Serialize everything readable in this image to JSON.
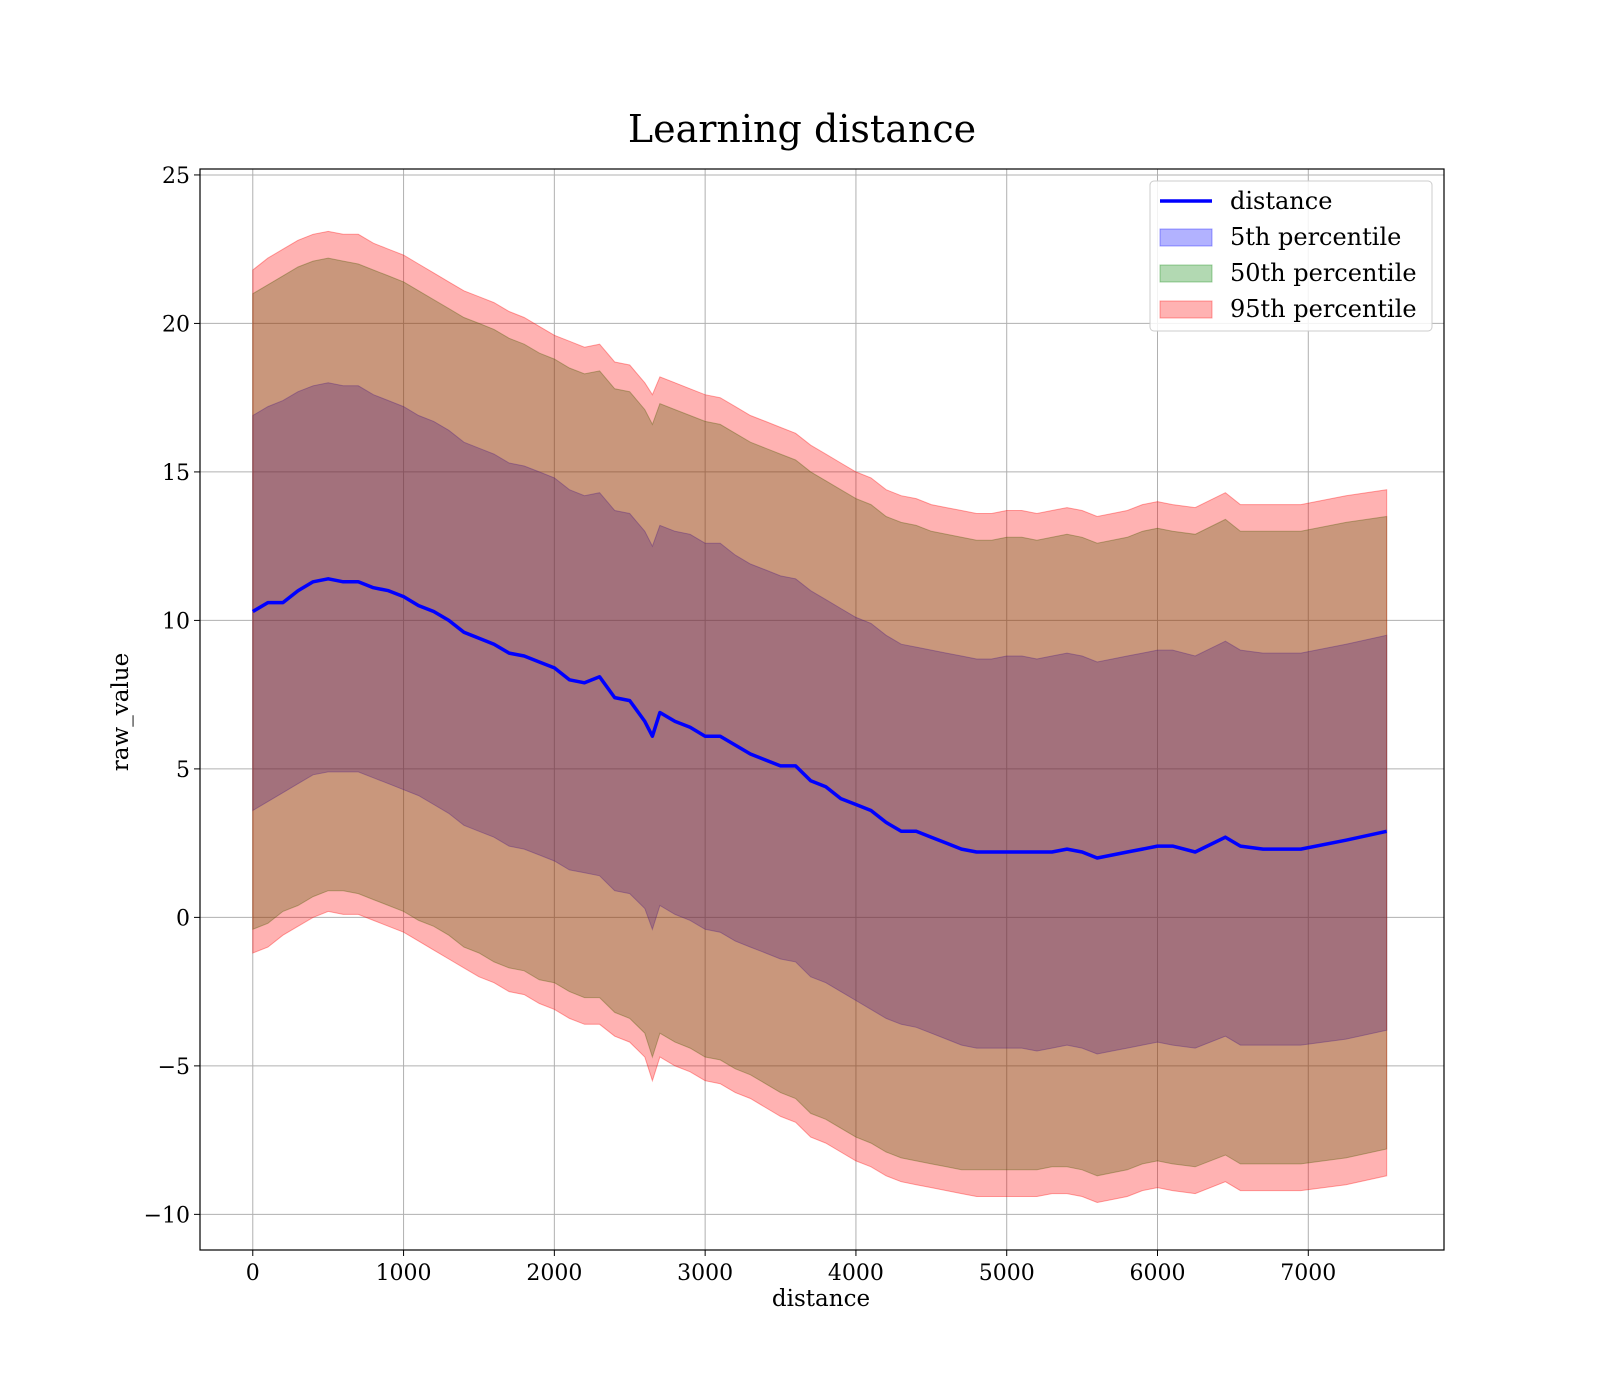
{
  "chart_data": {
    "type": "area",
    "title": "Learning distance",
    "xlabel": "distance",
    "ylabel": "raw_value",
    "xlim": [
      -350,
      7900
    ],
    "ylim": [
      -11.2,
      25.2
    ],
    "xticks": [
      0,
      1000,
      2000,
      3000,
      4000,
      5000,
      6000,
      7000
    ],
    "yticks": [
      -10,
      -5,
      0,
      5,
      10,
      15,
      20,
      25
    ],
    "xtick_labels": [
      "0",
      "1000",
      "2000",
      "3000",
      "4000",
      "5000",
      "6000",
      "7000"
    ],
    "ytick_labels": [
      "−10",
      "−5",
      "0",
      "5",
      "10",
      "15",
      "20",
      "25"
    ],
    "grid": true,
    "legend_position": "top-right",
    "x": [
      0,
      100,
      200,
      300,
      400,
      500,
      600,
      700,
      800,
      900,
      1000,
      1100,
      1200,
      1300,
      1400,
      1500,
      1600,
      1700,
      1800,
      1900,
      2000,
      2100,
      2200,
      2300,
      2400,
      2500,
      2600,
      2650,
      2700,
      2800,
      2900,
      3000,
      3100,
      3200,
      3300,
      3400,
      3500,
      3600,
      3700,
      3800,
      3900,
      4000,
      4100,
      4200,
      4300,
      4400,
      4500,
      4600,
      4700,
      4800,
      4900,
      5000,
      5100,
      5200,
      5300,
      5400,
      5500,
      5600,
      5700,
      5800,
      5900,
      6000,
      6100,
      6250,
      6450,
      6550,
      6700,
      6950,
      7250,
      7520
    ],
    "series": [
      {
        "name": "distance",
        "kind": "line",
        "color": "#0000ff",
        "values": [
          10.3,
          10.6,
          10.6,
          11.0,
          11.3,
          11.4,
          11.3,
          11.3,
          11.1,
          11.0,
          10.8,
          10.5,
          10.3,
          10.0,
          9.6,
          9.4,
          9.2,
          8.9,
          8.8,
          8.6,
          8.4,
          8.0,
          7.9,
          8.1,
          7.4,
          7.3,
          6.6,
          6.1,
          6.9,
          6.6,
          6.4,
          6.1,
          6.1,
          5.8,
          5.5,
          5.3,
          5.1,
          5.1,
          4.6,
          4.4,
          4.0,
          3.8,
          3.6,
          3.2,
          2.9,
          2.9,
          2.7,
          2.5,
          2.3,
          2.2,
          2.2,
          2.2,
          2.2,
          2.2,
          2.2,
          2.3,
          2.2,
          2.0,
          2.1,
          2.2,
          2.3,
          2.4,
          2.4,
          2.2,
          2.7,
          2.4,
          2.3,
          2.3,
          2.6,
          2.9
        ]
      },
      {
        "name": "5th percentile",
        "kind": "band",
        "color": "#0000ff",
        "lower": [
          3.6,
          3.9,
          4.2,
          4.5,
          4.8,
          4.9,
          4.9,
          4.9,
          4.7,
          4.5,
          4.3,
          4.1,
          3.8,
          3.5,
          3.1,
          2.9,
          2.7,
          2.4,
          2.3,
          2.1,
          1.9,
          1.6,
          1.5,
          1.4,
          0.9,
          0.8,
          0.3,
          -0.4,
          0.4,
          0.1,
          -0.1,
          -0.4,
          -0.5,
          -0.8,
          -1.0,
          -1.2,
          -1.4,
          -1.5,
          -2.0,
          -2.2,
          -2.5,
          -2.8,
          -3.1,
          -3.4,
          -3.6,
          -3.7,
          -3.9,
          -4.1,
          -4.3,
          -4.4,
          -4.4,
          -4.4,
          -4.4,
          -4.5,
          -4.4,
          -4.3,
          -4.4,
          -4.6,
          -4.5,
          -4.4,
          -4.3,
          -4.2,
          -4.3,
          -4.4,
          -4.0,
          -4.3,
          -4.3,
          -4.3,
          -4.1,
          -3.8
        ],
        "upper": [
          16.9,
          17.2,
          17.4,
          17.7,
          17.9,
          18.0,
          17.9,
          17.9,
          17.6,
          17.4,
          17.2,
          16.9,
          16.7,
          16.4,
          16.0,
          15.8,
          15.6,
          15.3,
          15.2,
          15.0,
          14.8,
          14.4,
          14.2,
          14.3,
          13.7,
          13.6,
          13.0,
          12.5,
          13.2,
          13.0,
          12.9,
          12.6,
          12.6,
          12.2,
          11.9,
          11.7,
          11.5,
          11.4,
          11.0,
          10.7,
          10.4,
          10.1,
          9.9,
          9.5,
          9.2,
          9.1,
          9.0,
          8.9,
          8.8,
          8.7,
          8.7,
          8.8,
          8.8,
          8.7,
          8.8,
          8.9,
          8.8,
          8.6,
          8.7,
          8.8,
          8.9,
          9.0,
          9.0,
          8.8,
          9.3,
          9.0,
          8.9,
          8.9,
          9.2,
          9.5
        ]
      },
      {
        "name": "50th percentile",
        "kind": "band",
        "color": "#008000",
        "lower": [
          -0.4,
          -0.2,
          0.2,
          0.4,
          0.7,
          0.9,
          0.9,
          0.8,
          0.6,
          0.4,
          0.2,
          -0.1,
          -0.3,
          -0.6,
          -1.0,
          -1.2,
          -1.5,
          -1.7,
          -1.8,
          -2.1,
          -2.2,
          -2.5,
          -2.7,
          -2.7,
          -3.2,
          -3.4,
          -3.9,
          -4.7,
          -3.9,
          -4.2,
          -4.4,
          -4.7,
          -4.8,
          -5.1,
          -5.3,
          -5.6,
          -5.9,
          -6.1,
          -6.6,
          -6.8,
          -7.1,
          -7.4,
          -7.6,
          -7.9,
          -8.1,
          -8.2,
          -8.3,
          -8.4,
          -8.5,
          -8.5,
          -8.5,
          -8.5,
          -8.5,
          -8.5,
          -8.4,
          -8.4,
          -8.5,
          -8.7,
          -8.6,
          -8.5,
          -8.3,
          -8.2,
          -8.3,
          -8.4,
          -8.0,
          -8.3,
          -8.3,
          -8.3,
          -8.1,
          -7.8
        ],
        "upper": [
          21.0,
          21.3,
          21.6,
          21.9,
          22.1,
          22.2,
          22.1,
          22.0,
          21.8,
          21.6,
          21.4,
          21.1,
          20.8,
          20.5,
          20.2,
          20.0,
          19.8,
          19.5,
          19.3,
          19.0,
          18.8,
          18.5,
          18.3,
          18.4,
          17.8,
          17.7,
          17.1,
          16.6,
          17.3,
          17.1,
          16.9,
          16.7,
          16.6,
          16.3,
          16.0,
          15.8,
          15.6,
          15.4,
          15.0,
          14.7,
          14.4,
          14.1,
          13.9,
          13.5,
          13.3,
          13.2,
          13.0,
          12.9,
          12.8,
          12.7,
          12.7,
          12.8,
          12.8,
          12.7,
          12.8,
          12.9,
          12.8,
          12.6,
          12.7,
          12.8,
          13.0,
          13.1,
          13.0,
          12.9,
          13.4,
          13.0,
          13.0,
          13.0,
          13.3,
          13.5
        ]
      },
      {
        "name": "95th percentile",
        "kind": "band",
        "color": "#ff0000",
        "lower": [
          -1.2,
          -1.0,
          -0.6,
          -0.3,
          0.0,
          0.2,
          0.1,
          0.1,
          -0.1,
          -0.3,
          -0.5,
          -0.8,
          -1.1,
          -1.4,
          -1.7,
          -2.0,
          -2.2,
          -2.5,
          -2.6,
          -2.9,
          -3.1,
          -3.4,
          -3.6,
          -3.6,
          -4.0,
          -4.2,
          -4.7,
          -5.5,
          -4.7,
          -5.0,
          -5.2,
          -5.5,
          -5.6,
          -5.9,
          -6.1,
          -6.4,
          -6.7,
          -6.9,
          -7.4,
          -7.6,
          -7.9,
          -8.2,
          -8.4,
          -8.7,
          -8.9,
          -9.0,
          -9.1,
          -9.2,
          -9.3,
          -9.4,
          -9.4,
          -9.4,
          -9.4,
          -9.4,
          -9.3,
          -9.3,
          -9.4,
          -9.6,
          -9.5,
          -9.4,
          -9.2,
          -9.1,
          -9.2,
          -9.3,
          -8.9,
          -9.2,
          -9.2,
          -9.2,
          -9.0,
          -8.7
        ],
        "upper": [
          21.8,
          22.2,
          22.5,
          22.8,
          23.0,
          23.1,
          23.0,
          23.0,
          22.7,
          22.5,
          22.3,
          22.0,
          21.7,
          21.4,
          21.1,
          20.9,
          20.7,
          20.4,
          20.2,
          19.9,
          19.6,
          19.4,
          19.2,
          19.3,
          18.7,
          18.6,
          18.0,
          17.6,
          18.2,
          18.0,
          17.8,
          17.6,
          17.5,
          17.2,
          16.9,
          16.7,
          16.5,
          16.3,
          15.9,
          15.6,
          15.3,
          15.0,
          14.8,
          14.4,
          14.2,
          14.1,
          13.9,
          13.8,
          13.7,
          13.6,
          13.6,
          13.7,
          13.7,
          13.6,
          13.7,
          13.8,
          13.7,
          13.5,
          13.6,
          13.7,
          13.9,
          14.0,
          13.9,
          13.8,
          14.3,
          13.9,
          13.9,
          13.9,
          14.2,
          14.4
        ]
      }
    ]
  }
}
